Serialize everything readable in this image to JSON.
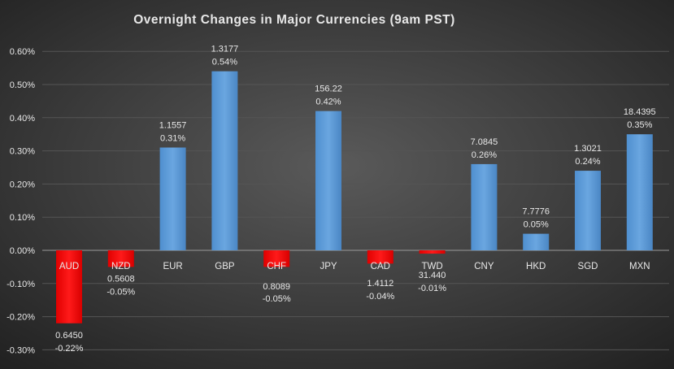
{
  "chart_data": {
    "type": "bar",
    "title": "Overnight Changes in Major Currencies (9am PST)",
    "xlabel": "",
    "ylabel": "",
    "ylim": [
      -0.3,
      0.6
    ],
    "yticks": [
      "0.60%",
      "0.50%",
      "0.40%",
      "0.30%",
      "0.20%",
      "0.10%",
      "0.00%",
      "-0.10%",
      "-0.20%",
      "-0.30%"
    ],
    "ytick_values": [
      0.6,
      0.5,
      0.4,
      0.3,
      0.2,
      0.1,
      0.0,
      -0.1,
      -0.2,
      -0.3
    ],
    "grid": true,
    "legend": "none",
    "categories": [
      "AUD",
      "NZD",
      "EUR",
      "GBP",
      "CHF",
      "JPY",
      "CAD",
      "TWD",
      "CNY",
      "HKD",
      "SGD",
      "MXN"
    ],
    "values": [
      -0.22,
      -0.05,
      0.31,
      0.54,
      -0.05,
      0.42,
      -0.04,
      -0.01,
      0.26,
      0.05,
      0.24,
      0.35
    ],
    "value_labels": [
      "-0.22%",
      "-0.05%",
      "0.31%",
      "0.54%",
      "-0.05%",
      "0.42%",
      "-0.04%",
      "-0.01%",
      "0.26%",
      "0.05%",
      "0.24%",
      "0.35%"
    ],
    "rates": [
      "0.6450",
      "0.5608",
      "1.1557",
      "1.3177",
      "0.8089",
      "156.22",
      "1.4112",
      "31.440",
      "7.0845",
      "7.7776",
      "1.3021",
      "18.4395"
    ],
    "colors": {
      "positive": "#5b9bd5",
      "negative": "#ff0000",
      "background": "#3a3a3a"
    }
  }
}
